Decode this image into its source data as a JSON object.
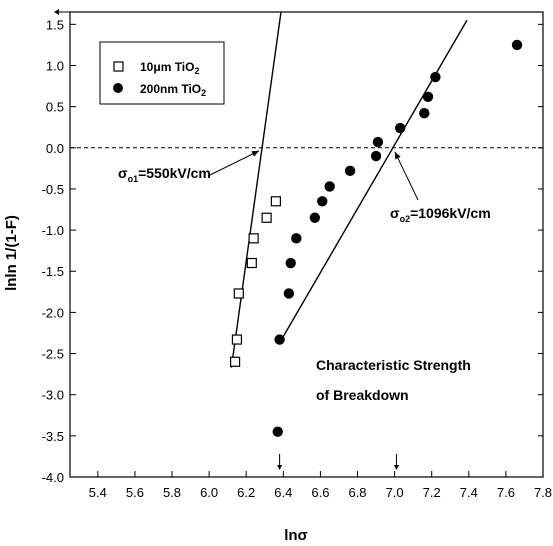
{
  "chart_data": {
    "type": "scatter",
    "xlabel": "lnσ",
    "ylabel": "lnln 1/(1-F)",
    "xlim": [
      5.25,
      7.8
    ],
    "ylim": [
      -4.0,
      1.65
    ],
    "x_ticks": [
      5.4,
      5.6,
      5.8,
      6.0,
      6.2,
      6.4,
      6.6,
      6.8,
      7.0,
      7.2,
      7.4,
      7.6,
      7.8
    ],
    "y_ticks": [
      -4.0,
      -3.5,
      -3.0,
      -2.5,
      -2.0,
      -1.5,
      -1.0,
      -0.5,
      0.0,
      0.5,
      1.0,
      1.5
    ],
    "grid": false,
    "legend_position": "top-left",
    "series": [
      {
        "name_main": "10μm  TiO",
        "name_sub": "2",
        "marker": "open-square",
        "points": [
          {
            "x": 6.14,
            "y": -2.6
          },
          {
            "x": 6.15,
            "y": -2.33
          },
          {
            "x": 6.16,
            "y": -1.77
          },
          {
            "x": 6.23,
            "y": -1.4
          },
          {
            "x": 6.24,
            "y": -1.1
          },
          {
            "x": 6.31,
            "y": -0.85
          },
          {
            "x": 6.36,
            "y": -0.65
          }
        ],
        "fit_line": {
          "x": [
            6.12,
            6.4
          ],
          "y": [
            -2.67,
            1.85
          ]
        }
      },
      {
        "name_main": "200nm TiO",
        "name_sub": "2",
        "marker": "filled-circle",
        "points": [
          {
            "x": 6.37,
            "y": -3.45
          },
          {
            "x": 6.38,
            "y": -2.33
          },
          {
            "x": 6.43,
            "y": -1.77
          },
          {
            "x": 6.44,
            "y": -1.4
          },
          {
            "x": 6.47,
            "y": -1.1
          },
          {
            "x": 6.57,
            "y": -0.85
          },
          {
            "x": 6.61,
            "y": -0.65
          },
          {
            "x": 6.65,
            "y": -0.47
          },
          {
            "x": 6.76,
            "y": -0.28
          },
          {
            "x": 6.9,
            "y": -0.1
          },
          {
            "x": 6.91,
            "y": 0.07
          },
          {
            "x": 7.03,
            "y": 0.24
          },
          {
            "x": 7.16,
            "y": 0.42
          },
          {
            "x": 7.18,
            "y": 0.62
          },
          {
            "x": 7.22,
            "y": 0.86
          },
          {
            "x": 7.66,
            "y": 1.25
          }
        ],
        "fit_line": {
          "x": [
            6.38,
            7.39
          ],
          "y": [
            -2.37,
            1.55
          ]
        }
      }
    ],
    "reference_line": {
      "y": 0.0,
      "style": "dashed"
    },
    "annotations": [
      {
        "id": "sigma1",
        "main": "σ",
        "sub": "o1",
        "rest": "=550kV/cm"
      },
      {
        "id": "sigma2",
        "main": "σ",
        "sub": "o2",
        "rest": "=1096kV/cm"
      },
      {
        "id": "characteristic1",
        "text": "Characteristic Strength"
      },
      {
        "id": "characteristic2",
        "text": "of Breakdown"
      }
    ],
    "bottom_markers_x": [
      6.38,
      7.01
    ]
  }
}
